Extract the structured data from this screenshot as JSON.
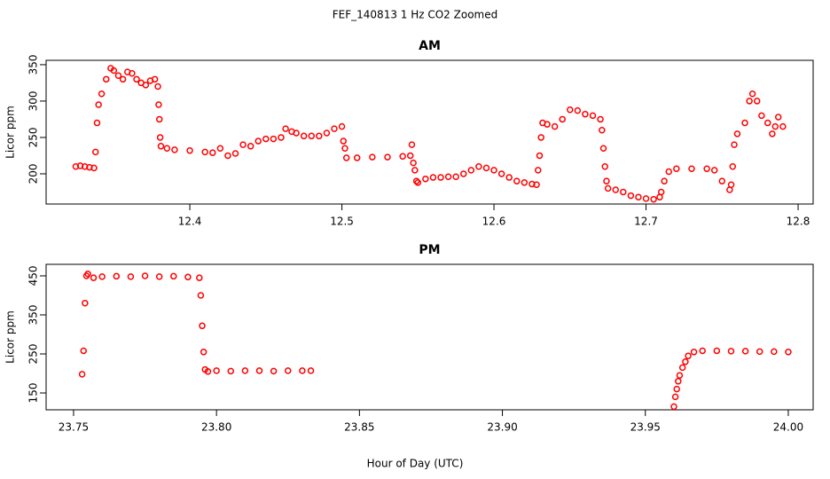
{
  "title": "FEF_140813  1 Hz CO2 Zoomed",
  "xlabel": "Hour of Day (UTC)",
  "chart_data": [
    {
      "type": "scatter",
      "title": "AM",
      "ylabel": "Licor ppm",
      "color": "#ff0000",
      "xlim": [
        12.3055,
        12.8099
      ],
      "ylim": [
        158.5,
        356
      ],
      "xticks": [
        12.4,
        12.5,
        12.6,
        12.7,
        12.8
      ],
      "yticks": [
        200,
        250,
        300,
        350
      ],
      "x": [
        12.325,
        12.328,
        12.331,
        12.334,
        12.337,
        12.338,
        12.339,
        12.34,
        12.342,
        12.345,
        12.348,
        12.35,
        12.353,
        12.356,
        12.359,
        12.362,
        12.365,
        12.368,
        12.371,
        12.374,
        12.377,
        12.379,
        12.3795,
        12.38,
        12.3805,
        12.381,
        12.385,
        12.39,
        12.4,
        12.41,
        12.415,
        12.42,
        12.425,
        12.43,
        12.435,
        12.44,
        12.445,
        12.45,
        12.455,
        12.46,
        12.463,
        12.467,
        12.47,
        12.475,
        12.48,
        12.485,
        12.49,
        12.495,
        12.5,
        12.501,
        12.502,
        12.503,
        12.51,
        12.52,
        12.53,
        12.54,
        12.545,
        12.546,
        12.547,
        12.548,
        12.549,
        12.55,
        12.555,
        12.56,
        12.565,
        12.57,
        12.575,
        12.58,
        12.585,
        12.59,
        12.595,
        12.6,
        12.605,
        12.61,
        12.615,
        12.62,
        12.625,
        12.628,
        12.629,
        12.63,
        12.631,
        12.632,
        12.635,
        12.64,
        12.645,
        12.65,
        12.655,
        12.66,
        12.665,
        12.67,
        12.671,
        12.672,
        12.673,
        12.674,
        12.675,
        12.68,
        12.685,
        12.69,
        12.695,
        12.7,
        12.705,
        12.709,
        12.71,
        12.712,
        12.715,
        12.72,
        12.73,
        12.74,
        12.745,
        12.75,
        12.755,
        12.756,
        12.757,
        12.758,
        12.76,
        12.765,
        12.768,
        12.77,
        12.773,
        12.776,
        12.78,
        12.783,
        12.785,
        12.787,
        12.79
      ],
      "values": [
        210,
        211,
        210,
        209,
        208,
        230,
        270,
        295,
        310,
        330,
        345,
        342,
        335,
        330,
        340,
        338,
        330,
        325,
        322,
        328,
        330,
        320,
        295,
        275,
        250,
        238,
        235,
        233,
        232,
        230,
        229,
        235,
        225,
        228,
        240,
        238,
        245,
        248,
        248,
        250,
        262,
        258,
        256,
        252,
        252,
        252,
        256,
        262,
        265,
        245,
        235,
        222,
        222,
        223,
        223,
        224,
        225,
        240,
        215,
        205,
        190,
        188,
        193,
        195,
        195,
        196,
        196,
        200,
        205,
        210,
        208,
        205,
        200,
        195,
        190,
        188,
        186,
        185,
        205,
        225,
        250,
        270,
        268,
        265,
        275,
        288,
        287,
        282,
        280,
        275,
        260,
        235,
        210,
        190,
        180,
        178,
        175,
        170,
        168,
        166,
        165,
        168,
        175,
        190,
        203,
        207,
        207,
        207,
        205,
        190,
        178,
        185,
        210,
        240,
        255,
        270,
        300,
        310,
        300,
        280,
        270,
        255,
        265,
        278,
        265
      ]
    },
    {
      "type": "scatter",
      "title": "PM",
      "ylabel": "Licor ppm",
      "color": "#ff0000",
      "xlim": [
        23.7404,
        24.0087
      ],
      "ylim": [
        106.8,
        479.5
      ],
      "xticks": [
        23.75,
        {
          "value": 23.8,
          "label": "23.80"
        },
        23.85,
        {
          "value": 23.9,
          "label": "23.90"
        },
        23.95,
        {
          "value": 24,
          "label": "24.00"
        }
      ],
      "yticks": [
        150,
        250,
        350,
        450
      ],
      "x": [
        23.753,
        23.7535,
        23.754,
        23.7545,
        23.755,
        23.757,
        23.76,
        23.765,
        23.77,
        23.775,
        23.78,
        23.785,
        23.79,
        23.794,
        23.7945,
        23.795,
        23.7955,
        23.796,
        23.797,
        23.8,
        23.805,
        23.81,
        23.815,
        23.82,
        23.825,
        23.83,
        23.833,
        23.96,
        23.9605,
        23.961,
        23.9615,
        23.962,
        23.963,
        23.964,
        23.965,
        23.967,
        23.97,
        23.975,
        23.98,
        23.985,
        23.99,
        23.995,
        24.0
      ],
      "values": [
        198,
        258,
        380,
        450,
        455,
        445,
        448,
        449,
        448,
        450,
        448,
        449,
        447,
        445,
        400,
        322,
        255,
        210,
        205,
        207,
        206,
        207,
        207,
        206,
        207,
        207,
        207,
        115,
        140,
        160,
        180,
        195,
        215,
        230,
        245,
        255,
        258,
        258,
        257,
        257,
        256,
        256,
        255
      ]
    }
  ]
}
